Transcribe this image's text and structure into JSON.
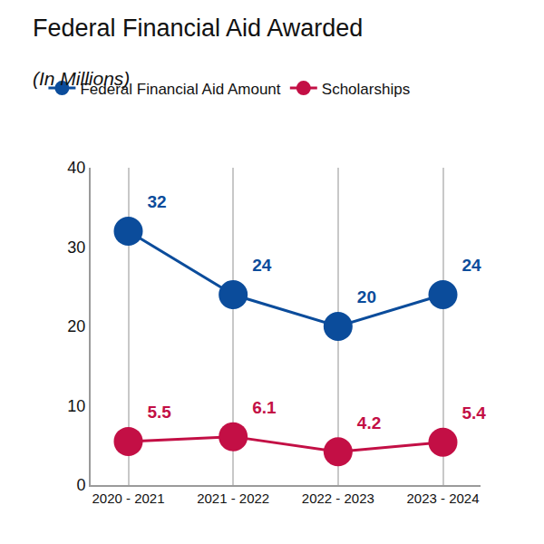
{
  "chart_data": {
    "type": "line",
    "title": "Federal Financial Aid Awarded",
    "subtitle": "(In Millions)",
    "categories": [
      "2020 - 2021",
      "2021 - 2022",
      "2022 - 2023",
      "2023 - 2024"
    ],
    "series": [
      {
        "name": "Federal Financial Aid Amount",
        "color": "#0b4c9b",
        "values": [
          32,
          24,
          20,
          24
        ]
      },
      {
        "name": "Scholarships",
        "color": "#c30f45",
        "values": [
          5.5,
          6.1,
          4.2,
          5.4
        ]
      }
    ],
    "ylim": [
      0,
      40
    ],
    "yticks": [
      0,
      10,
      20,
      30,
      40
    ],
    "grid": true,
    "data_labels": true,
    "legend": "top-left",
    "marker": "circle"
  }
}
